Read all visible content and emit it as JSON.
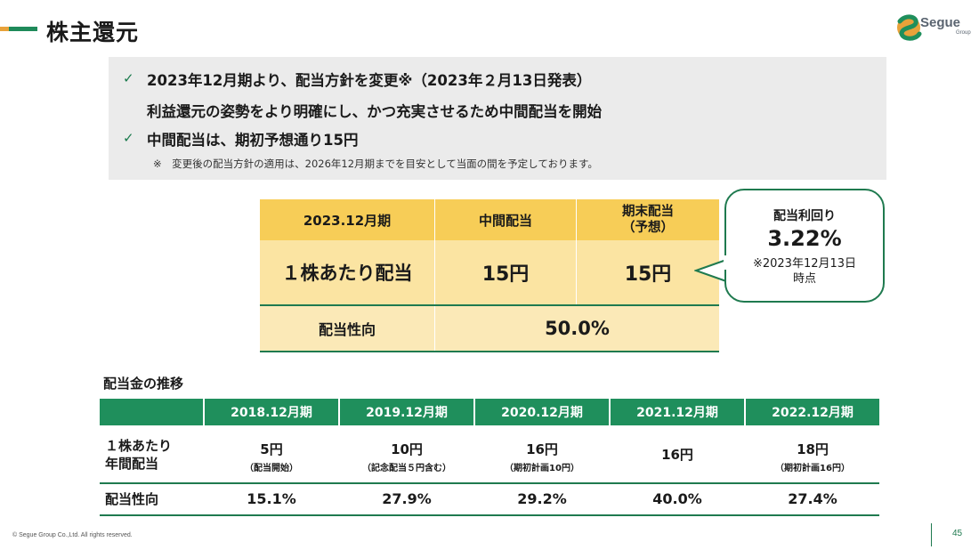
{
  "header": {
    "title": "株主還元",
    "logo_text": "Segue",
    "logo_sub": "Group"
  },
  "info": {
    "line1": "2023年12月期より、配当方針を変更※（2023年２月13日発表）",
    "line2": "利益還元の姿勢をより明確にし、かつ充実させるため中間配当を開始",
    "line3": "中間配当は、期初予想通り15円",
    "note": "※　変更後の配当方針の適用は、2026年12月期までを目安として当面の間を予定しております。"
  },
  "dividend_table": {
    "head_period": "2023.12月期",
    "head_interim": "中間配当",
    "head_yearend_1": "期末配当",
    "head_yearend_2": "（予想）",
    "row_label": "１株あたり配当",
    "interim_value": "15円",
    "yearend_value": "15円",
    "payout_label": "配当性向",
    "payout_value": "50.0%"
  },
  "callout": {
    "label": "配当利回り",
    "value": "3.22%",
    "note_1": "※2023年12月13日",
    "note_2": "時点"
  },
  "history": {
    "section_label": "配当金の推移",
    "row1_label_1": "１株あたり",
    "row1_label_2": "年間配当",
    "row2_label": "配当性向",
    "columns": [
      {
        "period": "2018.12月期",
        "dividend": "5円",
        "note": "（配当開始）",
        "payout": "15.1%"
      },
      {
        "period": "2019.12月期",
        "dividend": "10円",
        "note": "（記念配当５円含む）",
        "payout": "27.9%"
      },
      {
        "period": "2020.12月期",
        "dividend": "16円",
        "note": "（期初計画10円）",
        "payout": "29.2%"
      },
      {
        "period": "2021.12月期",
        "dividend": "16円",
        "note": "",
        "payout": "40.0%"
      },
      {
        "period": "2022.12月期",
        "dividend": "18円",
        "note": "（期初計画16円）",
        "payout": "27.4%"
      }
    ]
  },
  "footer": {
    "copyright": "© Segue Group Co.,Ltd. All rights reserved.",
    "page_number": "45"
  },
  "colors": {
    "brand_green": "#1f8f5c",
    "accent_orange": "#e8a23a",
    "header_yellow": "#f7cd57",
    "body_yellow": "#fbe4a2"
  }
}
